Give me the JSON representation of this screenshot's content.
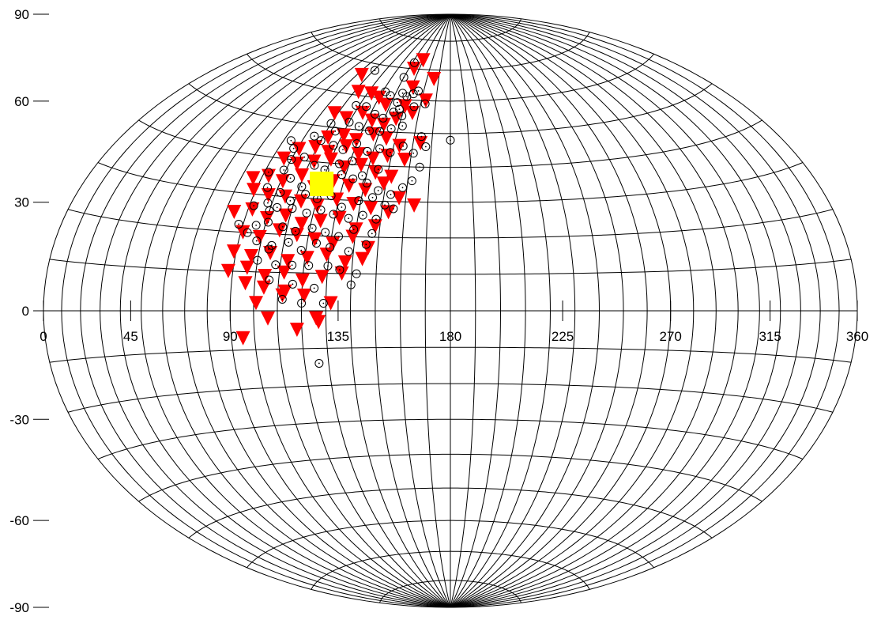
{
  "chart_data": {
    "type": "scatter",
    "projection": "aitoff-hammer",
    "title": "",
    "xlabel": "",
    "ylabel": "",
    "xlim": [
      0,
      360
    ],
    "ylim": [
      -90,
      90
    ],
    "grid": true,
    "grid_step_lon": 10,
    "grid_step_lat": 10,
    "x_ticks": [
      "0",
      "45",
      "90",
      "135",
      "180",
      "225",
      "270",
      "315",
      "360"
    ],
    "x_tick_values": [
      0,
      45,
      90,
      135,
      180,
      225,
      270,
      315,
      360
    ],
    "y_ticks": [
      "90",
      "60",
      "30",
      "0",
      "-30",
      "-60",
      "-90"
    ],
    "y_tick_values": [
      90,
      60,
      30,
      0,
      -30,
      -60,
      -90
    ],
    "colors": {
      "triangles": "#ff0000",
      "circles": "#000000",
      "center": "#ffff00",
      "grid": "#000000"
    },
    "series": [
      {
        "marker": "square",
        "color": "#ffff00",
        "points": [
          [
            120,
            34
          ]
        ]
      },
      {
        "marker": "triangle-down",
        "color": "#ff0000",
        "points": [
          [
            150,
            73
          ],
          [
            145,
            70
          ],
          [
            104,
            66
          ],
          [
            166,
            67
          ],
          [
            151,
            64
          ],
          [
            163,
            60
          ],
          [
            113,
            61
          ],
          [
            123,
            61
          ],
          [
            130,
            60
          ],
          [
            137,
            58
          ],
          [
            150,
            58
          ],
          [
            156,
            56
          ],
          [
            108,
            54
          ],
          [
            117,
            53
          ],
          [
            125,
            55
          ],
          [
            133,
            53
          ],
          [
            141,
            52
          ],
          [
            147,
            54
          ],
          [
            164,
            47
          ],
          [
            113,
            47
          ],
          [
            121,
            48
          ],
          [
            129,
            47
          ],
          [
            137,
            49
          ],
          [
            145,
            48
          ],
          [
            153,
            46
          ],
          [
            101,
            43
          ],
          [
            109,
            44
          ],
          [
            117,
            43
          ],
          [
            125,
            45
          ],
          [
            133,
            43
          ],
          [
            141,
            42
          ],
          [
            148,
            43
          ],
          [
            157,
            42
          ],
          [
            96,
            40
          ],
          [
            104,
            39
          ],
          [
            112,
            40
          ],
          [
            120,
            41
          ],
          [
            128,
            39
          ],
          [
            136,
            40
          ],
          [
            144,
            38
          ],
          [
            152,
            37
          ],
          [
            86,
            34
          ],
          [
            93,
            35
          ],
          [
            101,
            34
          ],
          [
            109,
            36
          ],
          [
            117,
            33
          ],
          [
            125,
            35
          ],
          [
            133,
            34
          ],
          [
            141,
            33
          ],
          [
            149,
            35
          ],
          [
            157,
            31
          ],
          [
            164,
            29
          ],
          [
            89,
            31
          ],
          [
            97,
            30
          ],
          [
            105,
            30
          ],
          [
            113,
            29
          ],
          [
            121,
            28
          ],
          [
            129,
            30
          ],
          [
            137,
            29
          ],
          [
            145,
            28
          ],
          [
            153,
            27
          ],
          [
            84,
            25
          ],
          [
            92,
            26
          ],
          [
            100,
            24
          ],
          [
            108,
            25
          ],
          [
            116,
            23
          ],
          [
            124,
            24
          ],
          [
            132,
            25
          ],
          [
            140,
            22
          ],
          [
            148,
            23
          ],
          [
            91,
            20
          ],
          [
            99,
            19
          ],
          [
            107,
            21
          ],
          [
            115,
            20
          ],
          [
            123,
            19
          ],
          [
            131,
            18
          ],
          [
            139,
            20
          ],
          [
            146,
            17
          ],
          [
            89,
            15
          ],
          [
            97,
            14
          ],
          [
            105,
            15
          ],
          [
            113,
            13
          ],
          [
            121,
            14
          ],
          [
            129,
            15
          ],
          [
            137,
            13
          ],
          [
            144,
            14
          ],
          [
            88,
            10
          ],
          [
            96,
            11
          ],
          [
            104,
            9
          ],
          [
            112,
            10
          ],
          [
            120,
            8
          ],
          [
            128,
            9
          ],
          [
            136,
            10
          ],
          [
            96,
            7
          ],
          [
            104,
            6
          ],
          [
            113,
            5
          ],
          [
            121,
            4
          ],
          [
            101,
            2
          ],
          [
            112,
            4
          ],
          [
            132,
            2
          ],
          [
            106,
            -2
          ],
          [
            118,
            -5
          ],
          [
            127,
            -3
          ],
          [
            95,
            -7
          ],
          [
            126,
            -2
          ]
        ]
      },
      {
        "marker": "circle",
        "color": "#000000",
        "points": [
          [
            111,
            68
          ],
          [
            142,
            72
          ],
          [
            140,
            67
          ],
          [
            145,
            62
          ],
          [
            149,
            61
          ],
          [
            153,
            62
          ],
          [
            156,
            63
          ],
          [
            132,
            62
          ],
          [
            137,
            61
          ],
          [
            144,
            59
          ],
          [
            147,
            57
          ],
          [
            156,
            58
          ],
          [
            163,
            59
          ],
          [
            180,
            48
          ],
          [
            164,
            49
          ],
          [
            167,
            46
          ],
          [
            161,
            44
          ],
          [
            165,
            40
          ],
          [
            162,
            36
          ],
          [
            158,
            34
          ],
          [
            118,
            57
          ],
          [
            125,
            57
          ],
          [
            133,
            55
          ],
          [
            139,
            54
          ],
          [
            144,
            56
          ],
          [
            150,
            55
          ],
          [
            110,
            51
          ],
          [
            115,
            49
          ],
          [
            120,
            52
          ],
          [
            127,
            51
          ],
          [
            134,
            50
          ],
          [
            140,
            50
          ],
          [
            146,
            51
          ],
          [
            152,
            52
          ],
          [
            94,
            45
          ],
          [
            98,
            43
          ],
          [
            105,
            47
          ],
          [
            110,
            46
          ],
          [
            118,
            45
          ],
          [
            124,
            44
          ],
          [
            130,
            46
          ],
          [
            137,
            44
          ],
          [
            143,
            45
          ],
          [
            149,
            44
          ],
          [
            155,
            46
          ],
          [
            100,
            40
          ],
          [
            106,
            41
          ],
          [
            113,
            39
          ],
          [
            119,
            38
          ],
          [
            125,
            40
          ],
          [
            131,
            41
          ],
          [
            138,
            37
          ],
          [
            145,
            39
          ],
          [
            92,
            36
          ],
          [
            99,
            37
          ],
          [
            104,
            35
          ],
          [
            111,
            33
          ],
          [
            116,
            35
          ],
          [
            122,
            36
          ],
          [
            128,
            37
          ],
          [
            134,
            36
          ],
          [
            141,
            35
          ],
          [
            147,
            33
          ],
          [
            153,
            32
          ],
          [
            95,
            32
          ],
          [
            102,
            31
          ],
          [
            108,
            29
          ],
          [
            114,
            31
          ],
          [
            120,
            30
          ],
          [
            126,
            31
          ],
          [
            132,
            28
          ],
          [
            139,
            30
          ],
          [
            145,
            31
          ],
          [
            151,
            29
          ],
          [
            155,
            28
          ],
          [
            92,
            27
          ],
          [
            98,
            28
          ],
          [
            103,
            27
          ],
          [
            110,
            27
          ],
          [
            117,
            26
          ],
          [
            123,
            27
          ],
          [
            129,
            26
          ],
          [
            136,
            25
          ],
          [
            142,
            26
          ],
          [
            148,
            25
          ],
          [
            88,
            22
          ],
          [
            96,
            22
          ],
          [
            101,
            23
          ],
          [
            108,
            22
          ],
          [
            114,
            21
          ],
          [
            121,
            22
          ],
          [
            127,
            21
          ],
          [
            133,
            20
          ],
          [
            139,
            22
          ],
          [
            147,
            21
          ],
          [
            98,
            18
          ],
          [
            105,
            17
          ],
          [
            112,
            18
          ],
          [
            118,
            16
          ],
          [
            124,
            18
          ],
          [
            130,
            17
          ],
          [
            138,
            16
          ],
          [
            145,
            18
          ],
          [
            100,
            13
          ],
          [
            108,
            12
          ],
          [
            115,
            12
          ],
          [
            122,
            12
          ],
          [
            130,
            12
          ],
          [
            135,
            11
          ],
          [
            142,
            10
          ],
          [
            106,
            8
          ],
          [
            116,
            7
          ],
          [
            125,
            6
          ],
          [
            140,
            7
          ],
          [
            112,
            3
          ],
          [
            120,
            2
          ],
          [
            129,
            2
          ],
          [
            126,
            -14
          ],
          [
            104,
            16
          ],
          [
            93,
            20
          ],
          [
            100,
            26
          ]
        ]
      }
    ]
  }
}
